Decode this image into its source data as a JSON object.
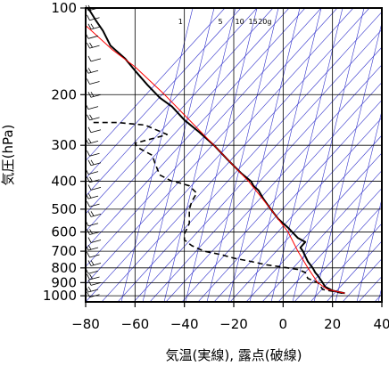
{
  "chart_data": {
    "type": "line",
    "title": "",
    "xlabel": "気温(実線), 露点(破線)",
    "ylabel": "気圧(hPa)",
    "xlim": [
      -80,
      40
    ],
    "ylim": [
      1050,
      100
    ],
    "y_scale": "log",
    "grid": true,
    "x_ticks": [
      -80,
      -60,
      -40,
      -20,
      0,
      20,
      40
    ],
    "x_tick_labels": [
      "−80",
      "−60",
      "−40",
      "−20",
      "0",
      "20",
      "40"
    ],
    "y_ticks": [
      100,
      200,
      300,
      400,
      500,
      600,
      700,
      800,
      900,
      1000
    ],
    "y_tick_labels": [
      "100",
      "200",
      "300",
      "400",
      "500",
      "600",
      "700",
      "800",
      "900",
      "1000"
    ],
    "mixing_ratio_labels": [
      "1",
      "5",
      "10",
      "15",
      "20g"
    ],
    "mixing_ratio_values": [
      1,
      5,
      10,
      15,
      20
    ],
    "colors": {
      "temperature": "#000000",
      "dewpoint": "#000000",
      "reference": "#ff0000",
      "background_lines": "#3333cc",
      "grid": "#000000"
    },
    "series": [
      {
        "role": "temperature",
        "style": "solid",
        "points": [
          [
            25,
            980
          ],
          [
            20,
            960
          ],
          [
            17,
            930
          ],
          [
            16,
            900
          ],
          [
            14,
            850
          ],
          [
            13,
            830
          ],
          [
            12,
            800
          ],
          [
            10,
            760
          ],
          [
            8,
            700
          ],
          [
            7,
            680
          ],
          [
            9,
            650
          ],
          [
            6,
            630
          ],
          [
            2,
            580
          ],
          [
            -2,
            540
          ],
          [
            -5,
            500
          ],
          [
            -8,
            460
          ],
          [
            -10,
            430
          ],
          [
            -12,
            415
          ],
          [
            -13,
            400
          ],
          [
            -17,
            375
          ],
          [
            -22,
            340
          ],
          [
            -28,
            300
          ],
          [
            -34,
            270
          ],
          [
            -40,
            245
          ],
          [
            -45,
            220
          ],
          [
            -50,
            205
          ],
          [
            -55,
            185
          ],
          [
            -60,
            165
          ],
          [
            -64,
            150
          ],
          [
            -70,
            135
          ],
          [
            -73,
            120
          ],
          [
            -76,
            110
          ],
          [
            -79,
            100
          ]
        ]
      },
      {
        "role": "dewpoint",
        "style": "dashed",
        "points": [
          [
            24,
            980
          ],
          [
            16,
            950
          ],
          [
            15,
            920
          ],
          [
            14,
            900
          ],
          [
            10,
            870
          ],
          [
            9,
            830
          ],
          [
            6,
            810
          ],
          [
            0,
            795
          ],
          [
            -7,
            780
          ],
          [
            -13,
            760
          ],
          [
            -20,
            740
          ],
          [
            -25,
            720
          ],
          [
            -32,
            700
          ],
          [
            -37,
            670
          ],
          [
            -40,
            640
          ],
          [
            -40,
            610
          ],
          [
            -38,
            560
          ],
          [
            -38,
            500
          ],
          [
            -37,
            470
          ],
          [
            -35,
            440
          ],
          [
            -38,
            415
          ],
          [
            -42,
            405
          ],
          [
            -45,
            400
          ],
          [
            -50,
            380
          ],
          [
            -52,
            345
          ],
          [
            -53,
            325
          ],
          [
            -59,
            305
          ],
          [
            -60,
            295
          ],
          [
            -50,
            280
          ],
          [
            -47,
            275
          ],
          [
            -56,
            255
          ],
          [
            -67,
            250
          ],
          [
            -78,
            250
          ]
        ]
      },
      {
        "role": "reference",
        "style": "solid",
        "points": [
          [
            25,
            980
          ],
          [
            18,
            950
          ],
          [
            14,
            900
          ],
          [
            10,
            800
          ],
          [
            6,
            700
          ],
          [
            2,
            600
          ],
          [
            -5,
            500
          ],
          [
            -14,
            400
          ],
          [
            -28,
            300
          ],
          [
            -48,
            200
          ],
          [
            -60,
            160
          ],
          [
            -69,
            140
          ],
          [
            -80,
            115
          ]
        ]
      }
    ]
  }
}
